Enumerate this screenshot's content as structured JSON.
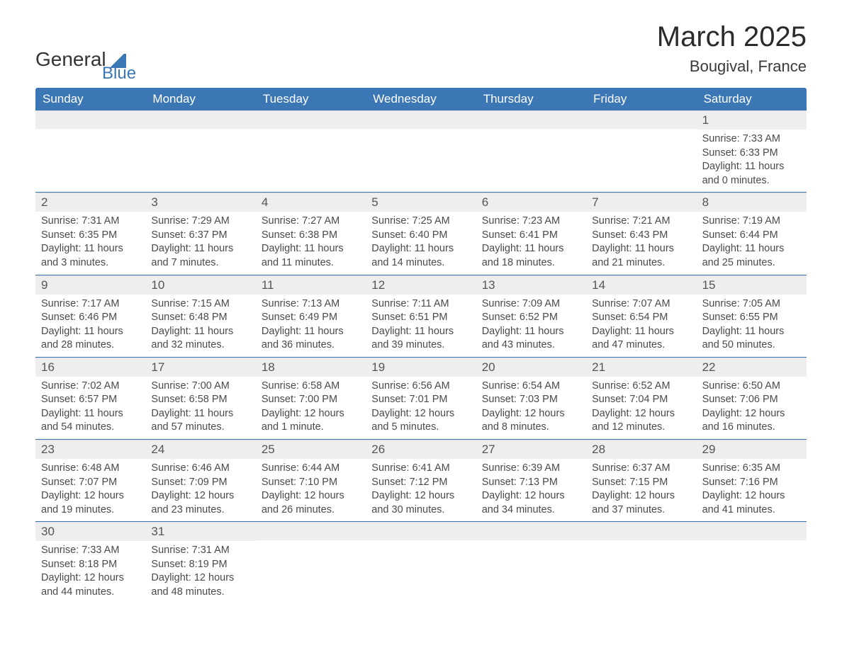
{
  "logo": {
    "text1": "General",
    "text2": "Blue"
  },
  "title": "March 2025",
  "location": "Bougival, France",
  "colors": {
    "header_bg": "#3b76b5",
    "header_text": "#ffffff",
    "daynum_bg": "#eeeeee",
    "border": "#3b76b5",
    "body_text": "#4a4a4a"
  },
  "day_names": [
    "Sunday",
    "Monday",
    "Tuesday",
    "Wednesday",
    "Thursday",
    "Friday",
    "Saturday"
  ],
  "weeks": [
    [
      {
        "n": "",
        "lines": []
      },
      {
        "n": "",
        "lines": []
      },
      {
        "n": "",
        "lines": []
      },
      {
        "n": "",
        "lines": []
      },
      {
        "n": "",
        "lines": []
      },
      {
        "n": "",
        "lines": []
      },
      {
        "n": "1",
        "lines": [
          "Sunrise: 7:33 AM",
          "Sunset: 6:33 PM",
          "Daylight: 11 hours and 0 minutes."
        ]
      }
    ],
    [
      {
        "n": "2",
        "lines": [
          "Sunrise: 7:31 AM",
          "Sunset: 6:35 PM",
          "Daylight: 11 hours and 3 minutes."
        ]
      },
      {
        "n": "3",
        "lines": [
          "Sunrise: 7:29 AM",
          "Sunset: 6:37 PM",
          "Daylight: 11 hours and 7 minutes."
        ]
      },
      {
        "n": "4",
        "lines": [
          "Sunrise: 7:27 AM",
          "Sunset: 6:38 PM",
          "Daylight: 11 hours and 11 minutes."
        ]
      },
      {
        "n": "5",
        "lines": [
          "Sunrise: 7:25 AM",
          "Sunset: 6:40 PM",
          "Daylight: 11 hours and 14 minutes."
        ]
      },
      {
        "n": "6",
        "lines": [
          "Sunrise: 7:23 AM",
          "Sunset: 6:41 PM",
          "Daylight: 11 hours and 18 minutes."
        ]
      },
      {
        "n": "7",
        "lines": [
          "Sunrise: 7:21 AM",
          "Sunset: 6:43 PM",
          "Daylight: 11 hours and 21 minutes."
        ]
      },
      {
        "n": "8",
        "lines": [
          "Sunrise: 7:19 AM",
          "Sunset: 6:44 PM",
          "Daylight: 11 hours and 25 minutes."
        ]
      }
    ],
    [
      {
        "n": "9",
        "lines": [
          "Sunrise: 7:17 AM",
          "Sunset: 6:46 PM",
          "Daylight: 11 hours and 28 minutes."
        ]
      },
      {
        "n": "10",
        "lines": [
          "Sunrise: 7:15 AM",
          "Sunset: 6:48 PM",
          "Daylight: 11 hours and 32 minutes."
        ]
      },
      {
        "n": "11",
        "lines": [
          "Sunrise: 7:13 AM",
          "Sunset: 6:49 PM",
          "Daylight: 11 hours and 36 minutes."
        ]
      },
      {
        "n": "12",
        "lines": [
          "Sunrise: 7:11 AM",
          "Sunset: 6:51 PM",
          "Daylight: 11 hours and 39 minutes."
        ]
      },
      {
        "n": "13",
        "lines": [
          "Sunrise: 7:09 AM",
          "Sunset: 6:52 PM",
          "Daylight: 11 hours and 43 minutes."
        ]
      },
      {
        "n": "14",
        "lines": [
          "Sunrise: 7:07 AM",
          "Sunset: 6:54 PM",
          "Daylight: 11 hours and 47 minutes."
        ]
      },
      {
        "n": "15",
        "lines": [
          "Sunrise: 7:05 AM",
          "Sunset: 6:55 PM",
          "Daylight: 11 hours and 50 minutes."
        ]
      }
    ],
    [
      {
        "n": "16",
        "lines": [
          "Sunrise: 7:02 AM",
          "Sunset: 6:57 PM",
          "Daylight: 11 hours and 54 minutes."
        ]
      },
      {
        "n": "17",
        "lines": [
          "Sunrise: 7:00 AM",
          "Sunset: 6:58 PM",
          "Daylight: 11 hours and 57 minutes."
        ]
      },
      {
        "n": "18",
        "lines": [
          "Sunrise: 6:58 AM",
          "Sunset: 7:00 PM",
          "Daylight: 12 hours and 1 minute."
        ]
      },
      {
        "n": "19",
        "lines": [
          "Sunrise: 6:56 AM",
          "Sunset: 7:01 PM",
          "Daylight: 12 hours and 5 minutes."
        ]
      },
      {
        "n": "20",
        "lines": [
          "Sunrise: 6:54 AM",
          "Sunset: 7:03 PM",
          "Daylight: 12 hours and 8 minutes."
        ]
      },
      {
        "n": "21",
        "lines": [
          "Sunrise: 6:52 AM",
          "Sunset: 7:04 PM",
          "Daylight: 12 hours and 12 minutes."
        ]
      },
      {
        "n": "22",
        "lines": [
          "Sunrise: 6:50 AM",
          "Sunset: 7:06 PM",
          "Daylight: 12 hours and 16 minutes."
        ]
      }
    ],
    [
      {
        "n": "23",
        "lines": [
          "Sunrise: 6:48 AM",
          "Sunset: 7:07 PM",
          "Daylight: 12 hours and 19 minutes."
        ]
      },
      {
        "n": "24",
        "lines": [
          "Sunrise: 6:46 AM",
          "Sunset: 7:09 PM",
          "Daylight: 12 hours and 23 minutes."
        ]
      },
      {
        "n": "25",
        "lines": [
          "Sunrise: 6:44 AM",
          "Sunset: 7:10 PM",
          "Daylight: 12 hours and 26 minutes."
        ]
      },
      {
        "n": "26",
        "lines": [
          "Sunrise: 6:41 AM",
          "Sunset: 7:12 PM",
          "Daylight: 12 hours and 30 minutes."
        ]
      },
      {
        "n": "27",
        "lines": [
          "Sunrise: 6:39 AM",
          "Sunset: 7:13 PM",
          "Daylight: 12 hours and 34 minutes."
        ]
      },
      {
        "n": "28",
        "lines": [
          "Sunrise: 6:37 AM",
          "Sunset: 7:15 PM",
          "Daylight: 12 hours and 37 minutes."
        ]
      },
      {
        "n": "29",
        "lines": [
          "Sunrise: 6:35 AM",
          "Sunset: 7:16 PM",
          "Daylight: 12 hours and 41 minutes."
        ]
      }
    ],
    [
      {
        "n": "30",
        "lines": [
          "Sunrise: 7:33 AM",
          "Sunset: 8:18 PM",
          "Daylight: 12 hours and 44 minutes."
        ]
      },
      {
        "n": "31",
        "lines": [
          "Sunrise: 7:31 AM",
          "Sunset: 8:19 PM",
          "Daylight: 12 hours and 48 minutes."
        ]
      },
      {
        "n": "",
        "lines": []
      },
      {
        "n": "",
        "lines": []
      },
      {
        "n": "",
        "lines": []
      },
      {
        "n": "",
        "lines": []
      },
      {
        "n": "",
        "lines": []
      }
    ]
  ]
}
